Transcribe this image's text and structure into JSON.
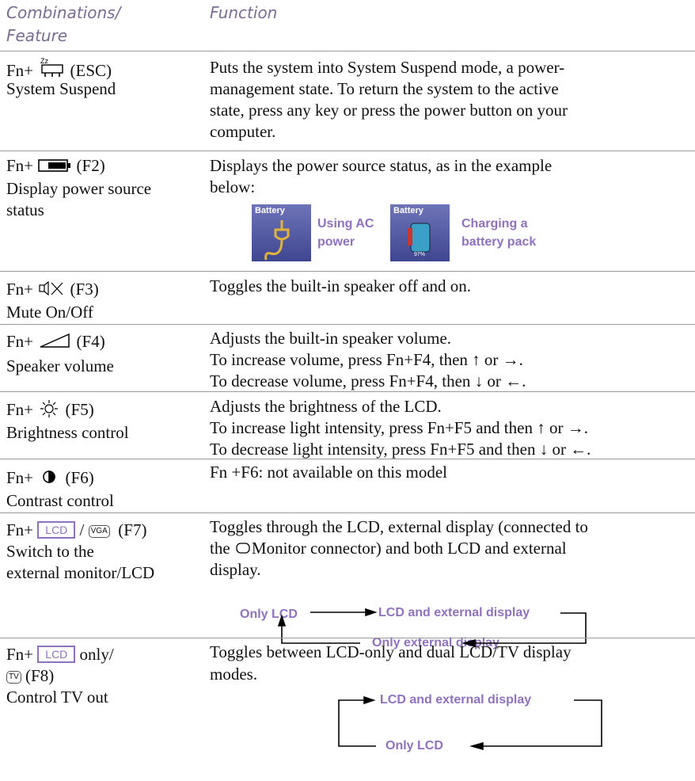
{
  "header": {
    "left": [
      "Combinations/",
      "Feature"
    ],
    "right": "Function"
  },
  "rows": [
    {
      "key": [
        "Fn+",
        "(ESC)"
      ],
      "feature": [
        "System Suspend"
      ],
      "function": [
        "Puts the system into System Suspend mode, a power-",
        "management state. To return the system to the active",
        "state, press any key or press the power button on your",
        "computer."
      ]
    },
    {
      "key": [
        "Fn+",
        "(F2)"
      ],
      "feature": [
        "Display power source",
        "status"
      ],
      "function": [
        "Displays the power source status, as in the example",
        "below:"
      ],
      "images": [
        {
          "caption": "Battery",
          "label": [
            "Using AC",
            "power"
          ]
        },
        {
          "caption": "Battery",
          "label": [
            "Charging a",
            "battery pack"
          ],
          "level": "97%"
        }
      ]
    },
    {
      "key": [
        "Fn+",
        "(F3)"
      ],
      "feature": [
        "Mute On/Off"
      ],
      "function": [
        "Toggles the built-in speaker off and on."
      ]
    },
    {
      "key": [
        "Fn+",
        "(F4)"
      ],
      "feature": [
        "Speaker volume"
      ],
      "function": [
        "Adjusts the built-in speaker volume.",
        "To increase volume, press Fn+F4, then ↑ or →.",
        "To decrease volume, press Fn+F4, then ↓ or ←."
      ]
    },
    {
      "key": [
        "Fn+",
        "(F5)"
      ],
      "feature": [
        "Brightness control"
      ],
      "function": [
        "Adjusts the brightness of the LCD.",
        "To increase light intensity, press Fn+F5 and then ↑ or →.",
        "To decrease light intensity, press Fn+F5 and then ↓ or ←."
      ]
    },
    {
      "key": [
        "Fn+",
        "(F6)"
      ],
      "feature": [
        "Contrast control"
      ],
      "function": [
        "Fn +F6: not available on this model"
      ]
    },
    {
      "key": [
        "Fn+",
        "LCD",
        "/",
        "VGA",
        "(F7)"
      ],
      "feature": [
        "Switch to the",
        "external monitor/LCD"
      ],
      "function": [
        "Toggles through the LCD, external display (connected to",
        "the",
        "Monitor connector) and both LCD and external",
        "display."
      ],
      "diagram": [
        "Only LCD",
        "LCD and external display",
        "Only external display"
      ]
    },
    {
      "key": [
        "Fn+",
        "LCD",
        "only/",
        "TV",
        "(F8)"
      ],
      "feature": [
        "Control TV out"
      ],
      "function": [
        "Toggles between LCD-only and dual LCD/TV display",
        "modes."
      ],
      "diagram": [
        "LCD and external display",
        "Only LCD"
      ]
    }
  ]
}
